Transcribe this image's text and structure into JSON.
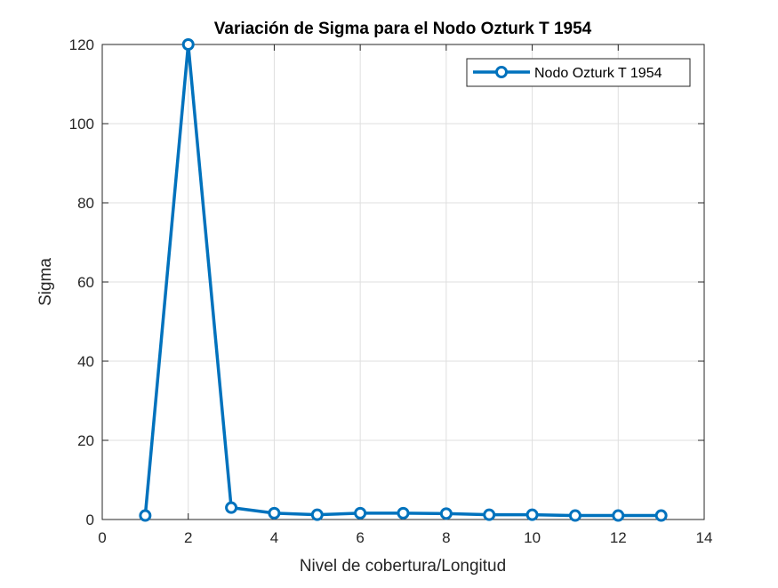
{
  "chart_data": {
    "type": "line",
    "title": "Variación de Sigma para el Nodo Ozturk T 1954",
    "xlabel": "Nivel de cobertura/Longitud",
    "ylabel": "Sigma",
    "xlim": [
      0,
      14
    ],
    "ylim": [
      0,
      120
    ],
    "xticks": [
      0,
      2,
      4,
      6,
      8,
      10,
      12,
      14
    ],
    "yticks": [
      0,
      20,
      40,
      60,
      80,
      100,
      120
    ],
    "grid": true,
    "legend_position": "top-right",
    "series": [
      {
        "name": "Nodo Ozturk T 1954",
        "color": "#0072BD",
        "marker": "circle",
        "x": [
          1,
          2,
          3,
          4,
          5,
          6,
          7,
          8,
          9,
          10,
          11,
          12,
          13
        ],
        "y": [
          1.0,
          120.0,
          3.0,
          1.6,
          1.2,
          1.6,
          1.6,
          1.5,
          1.2,
          1.2,
          1.0,
          1.0,
          1.0
        ]
      }
    ]
  }
}
